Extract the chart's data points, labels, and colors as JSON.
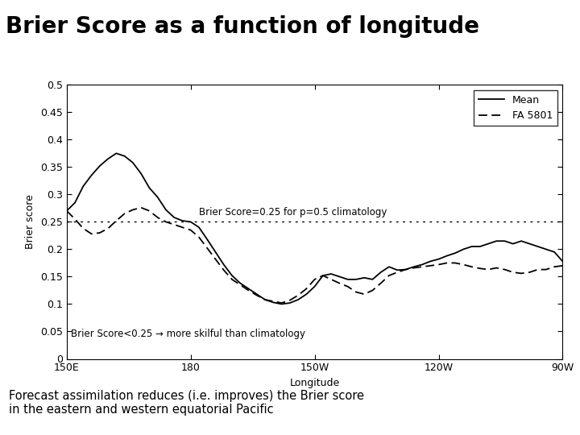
{
  "title": "Brier Score as a function of longitude",
  "xlabel": "Longitude",
  "ylabel": "Brier score",
  "ylim": [
    0,
    0.5
  ],
  "yticks": [
    0,
    0.05,
    0.1,
    0.15,
    0.2,
    0.25,
    0.3,
    0.35,
    0.4,
    0.45,
    0.5
  ],
  "ytick_labels": [
    "0",
    "0.05",
    "0.1",
    "0.15",
    "0.2",
    "0.25",
    "0.3",
    "0.35",
    "0.4",
    "0.45",
    "0.5"
  ],
  "xtick_labels": [
    "150E",
    "180",
    "150W",
    "120W",
    "90W"
  ],
  "xtick_positions": [
    0,
    30,
    60,
    90,
    120
  ],
  "clim_line_y": 0.25,
  "clim_annotation": "Brier Score=0.25 for p=0.5 climatology",
  "skilful_annotation": "Brier Score<0.25 → more skilful than climatology",
  "legend_labels": [
    "Mean",
    "FA 5801"
  ],
  "bg_color": "#ffffff",
  "line_color": "#000000",
  "footer_text": "Forecast assimilation reduces (i.e. improves) the Brier score\nin the eastern and western equatorial Pacific",
  "footer_bg": "#ffffcc",
  "mean_x": [
    0,
    2,
    4,
    6,
    8,
    10,
    12,
    14,
    16,
    18,
    20,
    22,
    24,
    26,
    28,
    30,
    32,
    34,
    36,
    38,
    40,
    42,
    44,
    46,
    48,
    50,
    52,
    54,
    56,
    58,
    60,
    62,
    64,
    66,
    68,
    70,
    72,
    74,
    76,
    78,
    80,
    82,
    84,
    86,
    88,
    90,
    92,
    94,
    96,
    98,
    100,
    102,
    104,
    106,
    108,
    110,
    112,
    114,
    116,
    118,
    120
  ],
  "mean_y": [
    0.27,
    0.285,
    0.315,
    0.335,
    0.352,
    0.365,
    0.375,
    0.37,
    0.358,
    0.338,
    0.312,
    0.295,
    0.272,
    0.258,
    0.252,
    0.25,
    0.24,
    0.218,
    0.195,
    0.172,
    0.152,
    0.138,
    0.128,
    0.118,
    0.108,
    0.103,
    0.1,
    0.102,
    0.108,
    0.118,
    0.132,
    0.152,
    0.155,
    0.15,
    0.145,
    0.145,
    0.148,
    0.145,
    0.158,
    0.168,
    0.162,
    0.163,
    0.168,
    0.172,
    0.178,
    0.182,
    0.188,
    0.193,
    0.2,
    0.205,
    0.205,
    0.21,
    0.215,
    0.215,
    0.21,
    0.215,
    0.21,
    0.205,
    0.2,
    0.195,
    0.178
  ],
  "fa_x": [
    0,
    2,
    4,
    6,
    8,
    10,
    12,
    14,
    16,
    18,
    20,
    22,
    24,
    26,
    28,
    30,
    32,
    34,
    36,
    38,
    40,
    42,
    44,
    46,
    48,
    50,
    52,
    54,
    56,
    58,
    60,
    62,
    64,
    66,
    68,
    70,
    72,
    74,
    76,
    78,
    80,
    82,
    84,
    86,
    88,
    90,
    92,
    94,
    96,
    98,
    100,
    102,
    104,
    106,
    108,
    110,
    112,
    114,
    116,
    118,
    120
  ],
  "fa_y": [
    0.27,
    0.255,
    0.238,
    0.228,
    0.23,
    0.238,
    0.252,
    0.265,
    0.272,
    0.276,
    0.27,
    0.258,
    0.25,
    0.245,
    0.24,
    0.235,
    0.222,
    0.202,
    0.182,
    0.162,
    0.145,
    0.135,
    0.125,
    0.116,
    0.108,
    0.105,
    0.102,
    0.107,
    0.116,
    0.128,
    0.145,
    0.152,
    0.145,
    0.138,
    0.132,
    0.122,
    0.118,
    0.125,
    0.138,
    0.152,
    0.158,
    0.163,
    0.166,
    0.168,
    0.17,
    0.172,
    0.175,
    0.175,
    0.172,
    0.168,
    0.165,
    0.163,
    0.166,
    0.163,
    0.158,
    0.156,
    0.158,
    0.163,
    0.163,
    0.168,
    0.17
  ]
}
